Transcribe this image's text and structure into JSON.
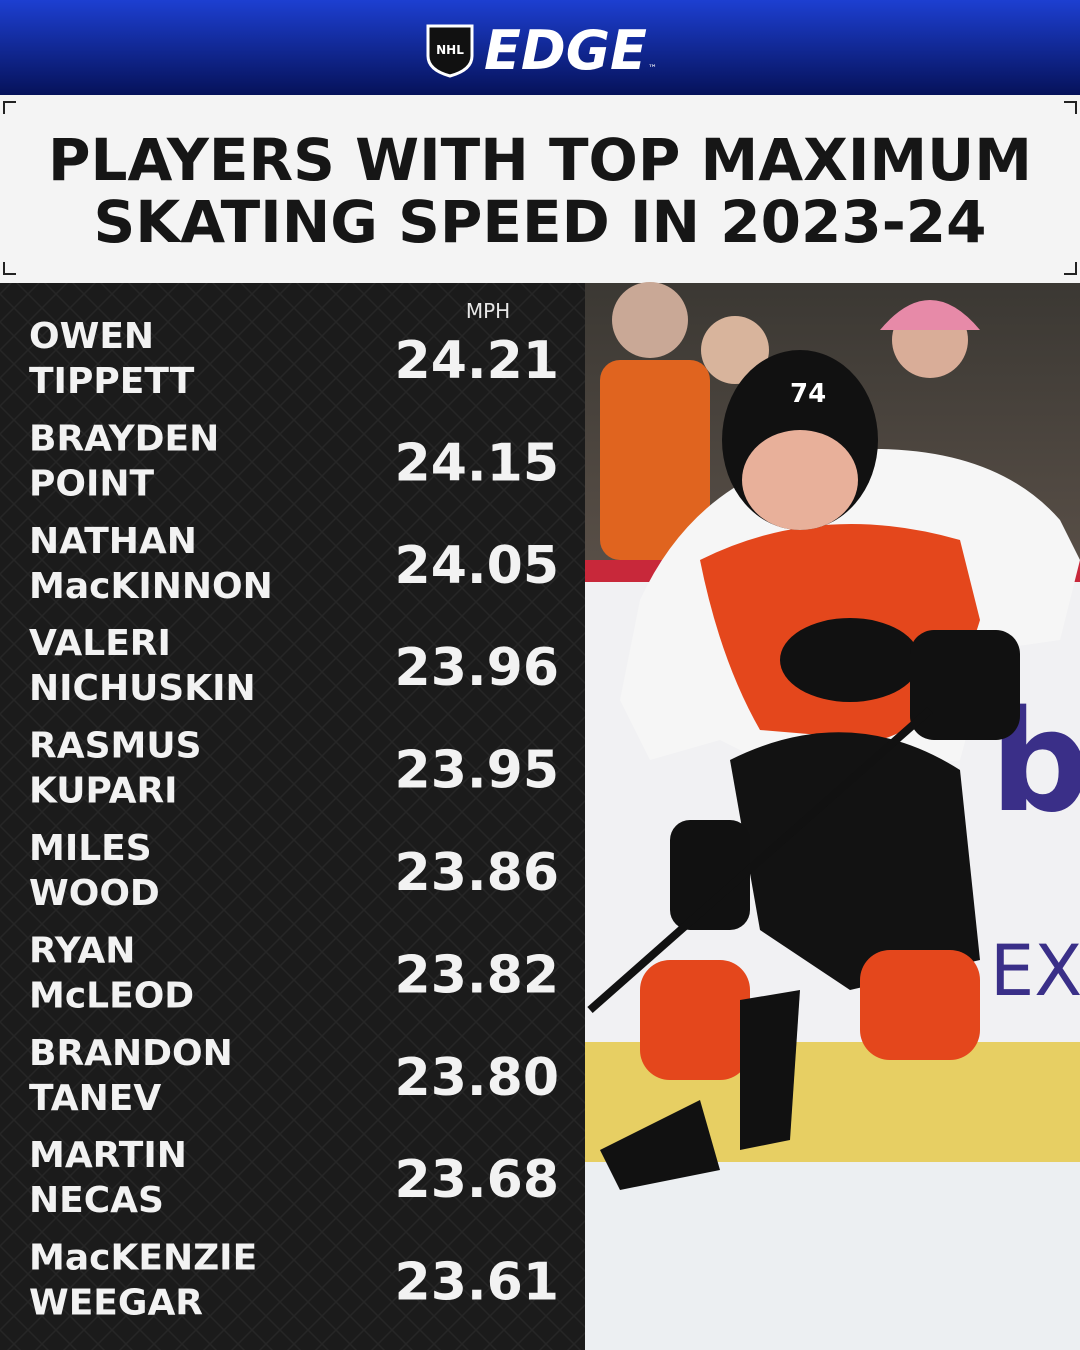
{
  "header": {
    "logo_badge": "NHL",
    "brand": "EDGE",
    "trademark": "™"
  },
  "title": {
    "lines": [
      "PLAYERS WITH TOP MAXIMUM",
      "SKATING SPEED IN 2023-24"
    ]
  },
  "table": {
    "unit": "MPH",
    "rows": [
      {
        "name": [
          "OWEN",
          "TIPPETT"
        ],
        "speed": "24.21"
      },
      {
        "name": [
          "BRAYDEN",
          "POINT"
        ],
        "speed": "24.15"
      },
      {
        "name": [
          "NATHAN",
          "MacKINNON"
        ],
        "speed": "24.05"
      },
      {
        "name": [
          "VALERI",
          "NICHUSKIN"
        ],
        "speed": "23.96"
      },
      {
        "name": [
          "RASMUS",
          "KUPARI"
        ],
        "speed": "23.95"
      },
      {
        "name": [
          "MILES",
          "WOOD"
        ],
        "speed": "23.86"
      },
      {
        "name": [
          "RYAN",
          "McLEOD"
        ],
        "speed": "23.82"
      },
      {
        "name": [
          "BRANDON",
          "TANEV"
        ],
        "speed": "23.80"
      },
      {
        "name": [
          "MARTIN",
          "NECAS"
        ],
        "speed": "23.68"
      },
      {
        "name": [
          "MacKENZIE",
          "WEEGAR"
        ],
        "speed": "23.61"
      }
    ]
  }
}
